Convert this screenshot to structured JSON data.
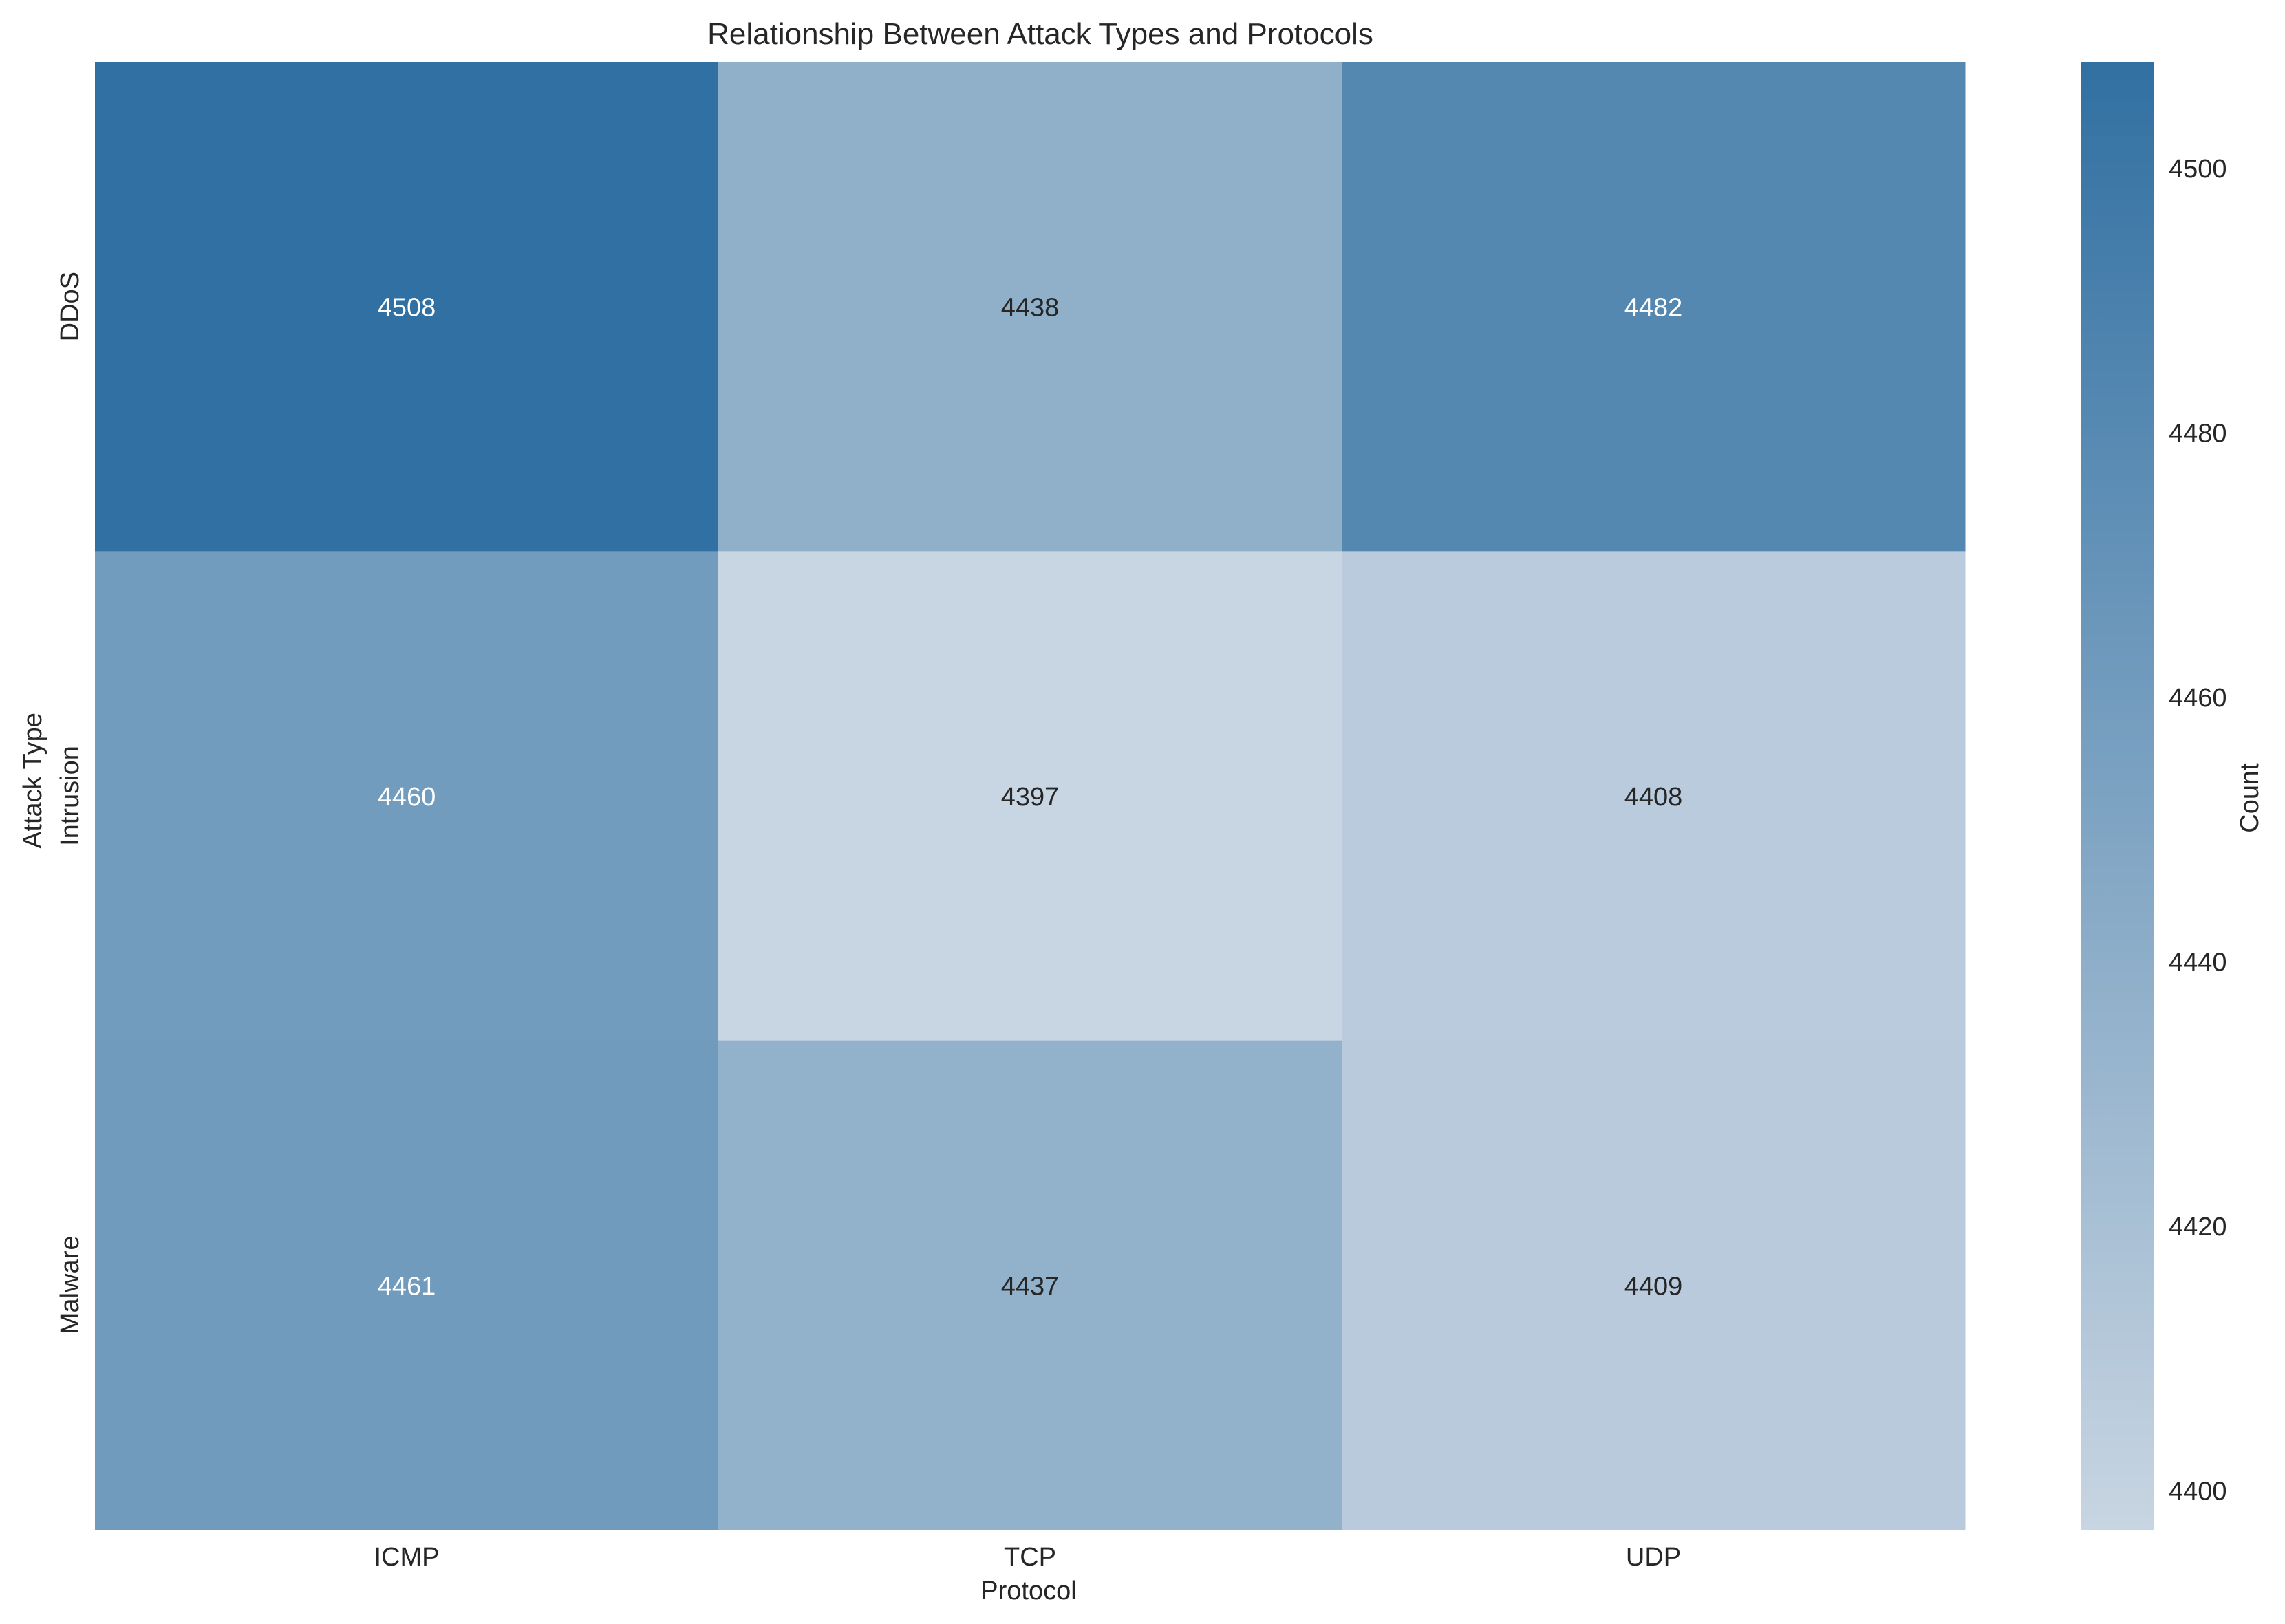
{
  "chart_data": {
    "type": "heatmap",
    "title": "Relationship Between Attack Types and Protocols",
    "xlabel": "Protocol",
    "ylabel": "Attack Type",
    "x_categories": [
      "ICMP",
      "TCP",
      "UDP"
    ],
    "y_categories": [
      "DDoS",
      "Intrusion",
      "Malware"
    ],
    "values": [
      [
        4508,
        4438,
        4482
      ],
      [
        4460,
        4397,
        4408
      ],
      [
        4461,
        4437,
        4409
      ]
    ],
    "colorbar": {
      "label": "Count",
      "range": [
        4397,
        4508
      ],
      "ticks": [
        4400,
        4420,
        4440,
        4460,
        4480,
        4500
      ],
      "color_low": "#c8d5e2",
      "color_high": "#3170a2"
    },
    "annotation_colors": {
      "dark_cell_text": "#ffffff",
      "light_cell_text": "#262626"
    },
    "legend": "colorbar-right",
    "grid": false
  }
}
